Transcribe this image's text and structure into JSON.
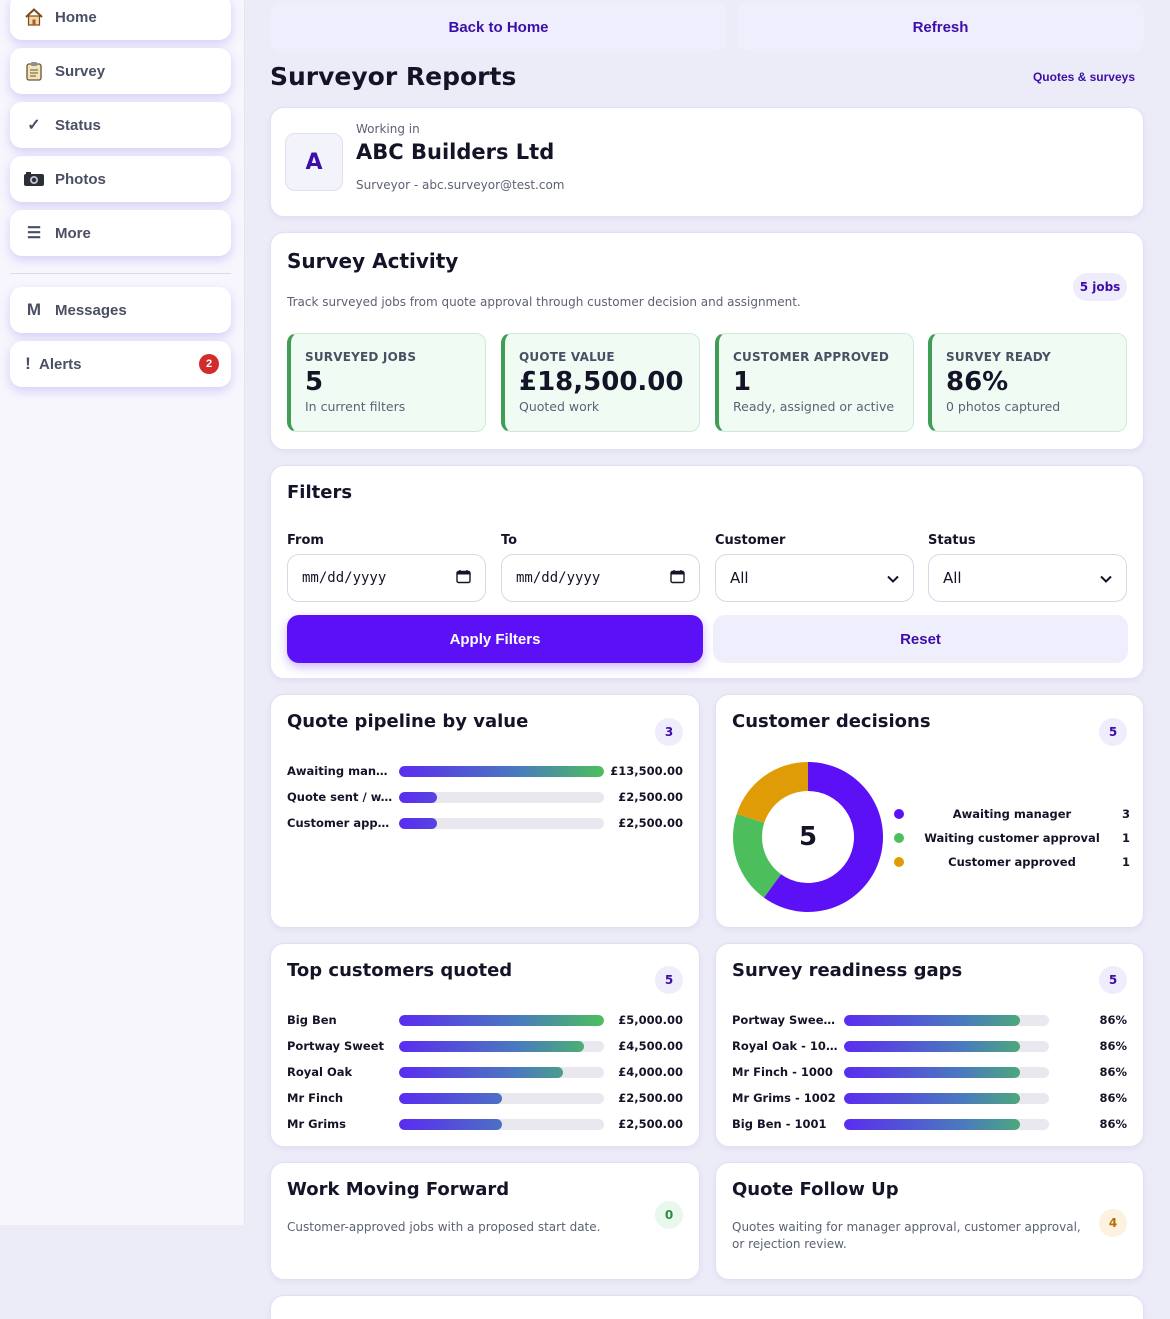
{
  "colors": {
    "accent": "#5b10f5",
    "accent_text": "#3d0ea8",
    "green": "#4cbf5c",
    "amber": "#e09c06",
    "badge_red": "#d12d2d"
  },
  "sidebar": {
    "items": [
      {
        "label": "Home",
        "icon": "house-icon"
      },
      {
        "label": "Survey",
        "icon": "clipboard-icon"
      },
      {
        "label": "Status",
        "icon": "checkmark-icon"
      },
      {
        "label": "Photos",
        "icon": "camera-icon"
      },
      {
        "label": "More",
        "icon": "menu-icon"
      },
      {
        "label": "Messages",
        "icon": "m-letter-icon"
      },
      {
        "label": "Alerts",
        "icon": "exclamation-icon",
        "badge": "2"
      }
    ]
  },
  "topbar": {
    "back_label": "Back to Home",
    "refresh_label": "Refresh"
  },
  "header": {
    "title": "Surveyor Reports",
    "link": "Quotes & surveys"
  },
  "workspace": {
    "caption": "Working in",
    "avatar": "A",
    "company": "ABC Builders Ltd",
    "user": "Surveyor - abc.surveyor@test.com"
  },
  "activity": {
    "title": "Survey Activity",
    "jobs_badge": "5 jobs",
    "description": "Track surveyed jobs from quote approval through customer decision and assignment.",
    "stats": [
      {
        "label": "SURVEYED JOBS",
        "value": "5",
        "sub": "In current filters"
      },
      {
        "label": "QUOTE VALUE",
        "value": "£18,500.00",
        "sub": "Quoted work"
      },
      {
        "label": "CUSTOMER APPROVED",
        "value": "1",
        "sub": "Ready, assigned or active"
      },
      {
        "label": "SURVEY READY",
        "value": "86%",
        "sub": "0 photos captured"
      }
    ]
  },
  "filters": {
    "title": "Filters",
    "from_label": "From",
    "from_value": "mm/dd/yyyy",
    "to_label": "To",
    "to_value": "mm/dd/yyyy",
    "customer_label": "Customer",
    "customer_value": "All",
    "status_label": "Status",
    "status_value": "All",
    "apply_label": "Apply Filters",
    "reset_label": "Reset"
  },
  "pipeline": {
    "title": "Quote pipeline by value",
    "count": "3",
    "rows": [
      {
        "label": "Awaiting mana...",
        "value": "£13,500.00",
        "fraction": 1.0
      },
      {
        "label": "Quote sent / w...",
        "value": "£2,500.00",
        "fraction": 0.185
      },
      {
        "label": "Customer appr...",
        "value": "£2,500.00",
        "fraction": 0.185
      }
    ]
  },
  "decisions": {
    "title": "Customer decisions",
    "count": "5",
    "total": "5",
    "legend": [
      {
        "name": "Awaiting manager",
        "count": "3",
        "value": 3,
        "color": "#5b10f5"
      },
      {
        "name": "Waiting customer approval",
        "count": "1",
        "value": 1,
        "color": "#4cbf5c"
      },
      {
        "name": "Customer approved",
        "count": "1",
        "value": 1,
        "color": "#e09c06"
      }
    ]
  },
  "top_customers": {
    "title": "Top customers quoted",
    "count": "5",
    "rows": [
      {
        "label": "Big Ben",
        "value": "£5,000.00",
        "fraction": 1.0
      },
      {
        "label": "Portway Sweet",
        "value": "£4,500.00",
        "fraction": 0.9
      },
      {
        "label": "Royal Oak",
        "value": "£4,000.00",
        "fraction": 0.8
      },
      {
        "label": "Mr Finch",
        "value": "£2,500.00",
        "fraction": 0.5
      },
      {
        "label": "Mr Grims",
        "value": "£2,500.00",
        "fraction": 0.5
      }
    ]
  },
  "readiness": {
    "title": "Survey readiness gaps",
    "count": "5",
    "rows": [
      {
        "label": "Portway Sweet...",
        "value": "86%",
        "fraction": 0.86
      },
      {
        "label": "Royal Oak - 1003",
        "value": "86%",
        "fraction": 0.86
      },
      {
        "label": "Mr Finch - 1000",
        "value": "86%",
        "fraction": 0.86
      },
      {
        "label": "Mr Grims - 1002",
        "value": "86%",
        "fraction": 0.86
      },
      {
        "label": "Big Ben - 1001",
        "value": "86%",
        "fraction": 0.86
      }
    ]
  },
  "work_forward": {
    "title": "Work Moving Forward",
    "count": "0",
    "description": "Customer-approved jobs with a proposed start date."
  },
  "follow_up": {
    "title": "Quote Follow Up",
    "count": "4",
    "description": "Quotes waiting for manager approval, customer approval, or rejection review."
  }
}
